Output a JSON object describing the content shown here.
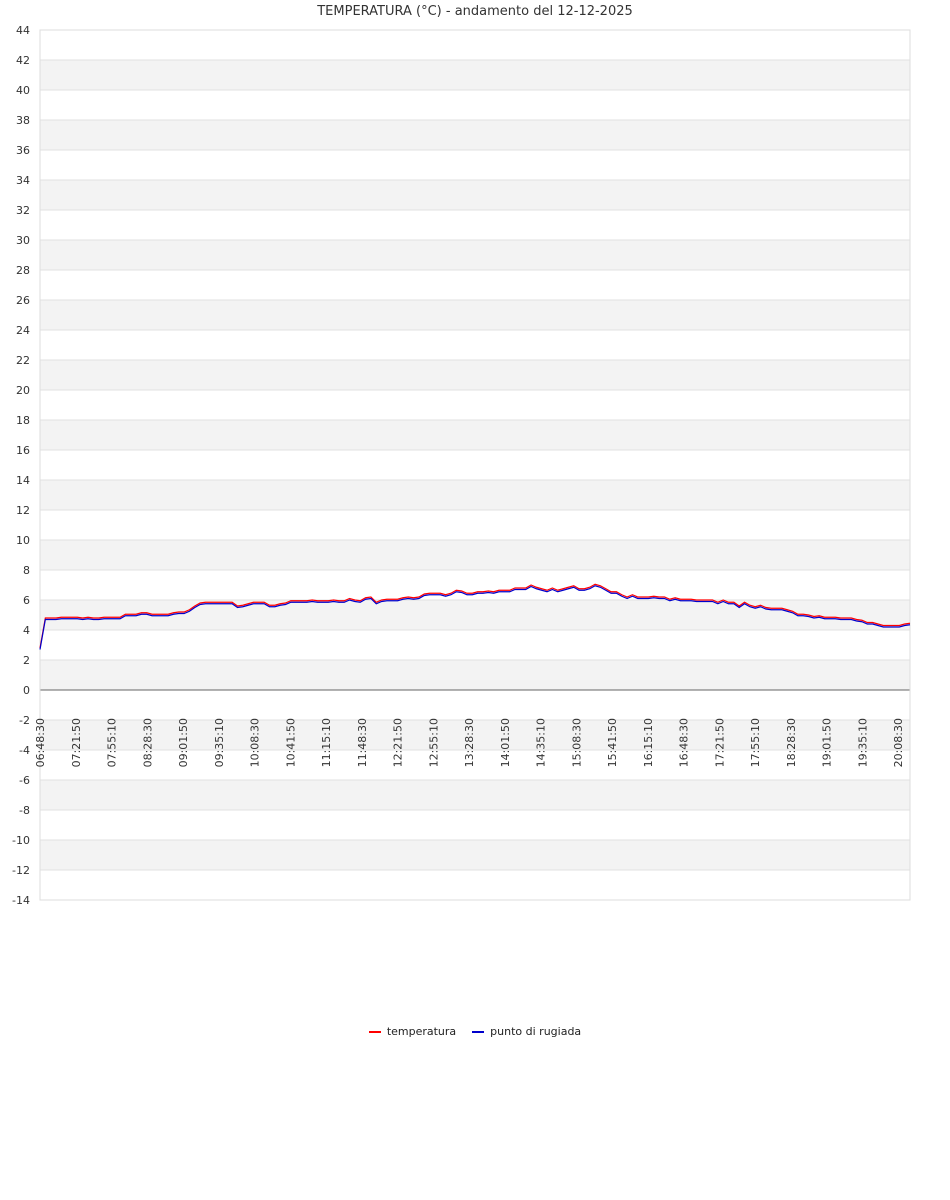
{
  "chart_data": {
    "type": "line",
    "title": "TEMPERATURA (°C) - andamento del 12-12-2025",
    "ylim": [
      -14,
      44
    ],
    "y_ticks": [
      44,
      42,
      40,
      38,
      36,
      34,
      32,
      30,
      28,
      26,
      24,
      22,
      20,
      18,
      16,
      14,
      12,
      10,
      8,
      6,
      4,
      2,
      0,
      -2,
      -4,
      -6,
      -8,
      -10,
      -12,
      -14
    ],
    "x_tick_labels": [
      "06:48:30",
      "07:21:50",
      "07:55:10",
      "08:28:30",
      "09:01:50",
      "09:35:10",
      "10:08:30",
      "10:41:50",
      "11:15:10",
      "11:48:30",
      "12:21:50",
      "12:55:10",
      "13:28:30",
      "14:01:50",
      "14:35:10",
      "15:08:30",
      "15:41:50",
      "16:15:10",
      "16:48:30",
      "17:21:50",
      "17:55:10",
      "18:28:30",
      "19:01:50",
      "19:35:10",
      "20:08:30"
    ],
    "grid": true,
    "legend_placement": "bottom",
    "series": [
      {
        "name": "temperatura",
        "color": "#ff0000",
        "values": [
          2.8,
          4.8,
          4.8,
          4.8,
          4.85,
          4.85,
          4.85,
          4.85,
          4.8,
          4.85,
          4.8,
          4.8,
          4.85,
          4.85,
          4.85,
          4.85,
          5.05,
          5.05,
          5.05,
          5.15,
          5.15,
          5.05,
          5.05,
          5.05,
          5.05,
          5.15,
          5.2,
          5.2,
          5.35,
          5.6,
          5.8,
          5.85,
          5.85,
          5.85,
          5.85,
          5.85,
          5.85,
          5.6,
          5.65,
          5.75,
          5.85,
          5.85,
          5.85,
          5.65,
          5.65,
          5.75,
          5.8,
          5.95,
          5.95,
          5.95,
          5.95,
          6.0,
          5.95,
          5.95,
          5.95,
          6.0,
          5.95,
          5.95,
          6.1,
          6.0,
          5.95,
          6.15,
          6.2,
          5.85,
          6.0,
          6.05,
          6.05,
          6.05,
          6.15,
          6.2,
          6.15,
          6.2,
          6.4,
          6.45,
          6.45,
          6.45,
          6.35,
          6.45,
          6.65,
          6.6,
          6.45,
          6.45,
          6.55,
          6.55,
          6.6,
          6.55,
          6.65,
          6.65,
          6.65,
          6.8,
          6.8,
          6.8,
          7.0,
          6.85,
          6.75,
          6.65,
          6.8,
          6.65,
          6.75,
          6.85,
          6.95,
          6.75,
          6.75,
          6.85,
          7.05,
          6.95,
          6.75,
          6.55,
          6.55,
          6.35,
          6.2,
          6.35,
          6.2,
          6.2,
          6.2,
          6.25,
          6.2,
          6.2,
          6.05,
          6.15,
          6.05,
          6.05,
          6.05,
          6.0,
          6.0,
          6.0,
          6.0,
          5.85,
          6.0,
          5.85,
          5.85,
          5.6,
          5.85,
          5.65,
          5.55,
          5.65,
          5.5,
          5.45,
          5.45,
          5.45,
          5.35,
          5.25,
          5.05,
          5.05,
          5.0,
          4.9,
          4.95,
          4.85,
          4.85,
          4.85,
          4.8,
          4.8,
          4.8,
          4.7,
          4.65,
          4.5,
          4.5,
          4.4,
          4.3,
          4.3,
          4.3,
          4.3,
          4.4,
          4.45
        ]
      },
      {
        "name": "punto di rugiada",
        "color": "#0000cc",
        "values": [
          2.7,
          4.7,
          4.7,
          4.7,
          4.75,
          4.75,
          4.75,
          4.75,
          4.7,
          4.75,
          4.7,
          4.7,
          4.75,
          4.75,
          4.75,
          4.75,
          4.95,
          4.95,
          4.95,
          5.05,
          5.05,
          4.95,
          4.95,
          4.95,
          4.95,
          5.05,
          5.1,
          5.1,
          5.25,
          5.5,
          5.7,
          5.75,
          5.75,
          5.75,
          5.75,
          5.75,
          5.75,
          5.5,
          5.55,
          5.65,
          5.75,
          5.75,
          5.75,
          5.55,
          5.55,
          5.65,
          5.7,
          5.85,
          5.85,
          5.85,
          5.85,
          5.9,
          5.85,
          5.85,
          5.85,
          5.9,
          5.85,
          5.85,
          6.0,
          5.9,
          5.85,
          6.05,
          6.1,
          5.75,
          5.9,
          5.95,
          5.95,
          5.95,
          6.05,
          6.1,
          6.05,
          6.1,
          6.3,
          6.35,
          6.35,
          6.35,
          6.25,
          6.35,
          6.55,
          6.5,
          6.35,
          6.35,
          6.45,
          6.45,
          6.5,
          6.45,
          6.55,
          6.55,
          6.55,
          6.7,
          6.7,
          6.7,
          6.9,
          6.75,
          6.65,
          6.55,
          6.7,
          6.55,
          6.65,
          6.75,
          6.85,
          6.65,
          6.65,
          6.75,
          6.95,
          6.85,
          6.65,
          6.45,
          6.45,
          6.25,
          6.1,
          6.25,
          6.1,
          6.1,
          6.1,
          6.15,
          6.1,
          6.1,
          5.95,
          6.05,
          5.95,
          5.95,
          5.95,
          5.9,
          5.9,
          5.9,
          5.9,
          5.75,
          5.9,
          5.75,
          5.75,
          5.5,
          5.75,
          5.55,
          5.45,
          5.55,
          5.4,
          5.35,
          5.35,
          5.35,
          5.25,
          5.15,
          4.95,
          4.95,
          4.9,
          4.8,
          4.85,
          4.75,
          4.75,
          4.75,
          4.7,
          4.7,
          4.7,
          4.6,
          4.55,
          4.4,
          4.4,
          4.3,
          4.2,
          4.2,
          4.2,
          4.2,
          4.3,
          4.35
        ]
      }
    ]
  }
}
